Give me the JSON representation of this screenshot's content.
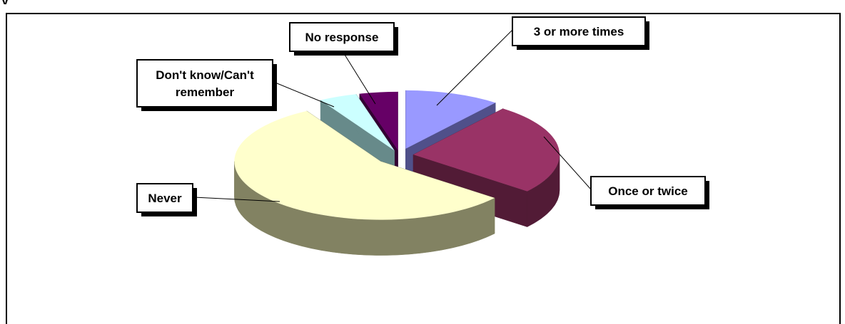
{
  "page": {
    "header_fragment": "y"
  },
  "chart_data": {
    "type": "pie",
    "style": "3d-exploded",
    "title": "",
    "slices": [
      {
        "label": "3 or more times",
        "value": 10,
        "top_color": "#9999FF",
        "side_color": "#50508A"
      },
      {
        "label": "Once or twice",
        "value": 24,
        "top_color": "#993366",
        "side_color": "#521B36"
      },
      {
        "label": "Never",
        "value": 53,
        "top_color": "#FFFFCC",
        "side_color": "#828262"
      },
      {
        "label": "Don't know/Can't remember",
        "value": 4,
        "top_color": "#CCFFFF",
        "side_color": "#678A8A"
      },
      {
        "label": "No response",
        "value": 4,
        "top_color": "#660066",
        "side_color": "#330033"
      }
    ],
    "legend": "none",
    "data_labels": "callout-boxes"
  }
}
